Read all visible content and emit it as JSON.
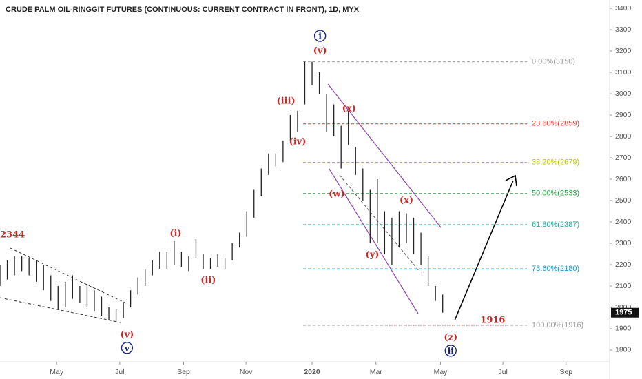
{
  "chart_data": {
    "type": "range_bar",
    "title": "CRUDE PALM OIL-RINGGIT FUTURES (CONTINUOUS: CURRENT CONTRACT IN FRONT), 1D, MYX",
    "color": "#222222",
    "x": [
      0,
      1,
      2,
      3,
      4,
      5,
      6,
      7,
      8,
      9,
      10,
      11,
      12,
      13,
      14,
      15,
      16,
      17,
      18,
      19,
      20,
      21,
      22,
      23,
      24,
      25,
      26,
      27,
      28,
      29,
      30,
      31,
      32,
      33,
      34,
      35,
      36,
      37,
      38,
      39,
      40,
      41,
      42,
      43,
      44,
      45,
      46,
      47,
      48,
      49,
      50,
      51,
      52,
      53,
      54,
      55,
      56,
      57,
      58,
      59,
      60,
      61
    ],
    "high": [
      2200,
      2220,
      2240,
      2240,
      2230,
      2220,
      2200,
      2150,
      2100,
      2120,
      2150,
      2100,
      2110,
      2080,
      2050,
      2000,
      1990,
      2020,
      2080,
      2140,
      2180,
      2220,
      2260,
      2260,
      2310,
      2260,
      2240,
      2320,
      2250,
      2230,
      2250,
      2230,
      2300,
      2350,
      2450,
      2550,
      2650,
      2720,
      2720,
      2780,
      2900,
      2920,
      3150,
      3150,
      3100,
      3000,
      2950,
      2850,
      2920,
      2750,
      2650,
      2550,
      2600,
      2450,
      2420,
      2450,
      2440,
      2420,
      2350,
      2240,
      2100,
      2060
    ],
    "low": [
      2100,
      2130,
      2150,
      2170,
      2150,
      2120,
      2080,
      2030,
      1990,
      2000,
      2040,
      2020,
      2000,
      1980,
      1960,
      1940,
      1930,
      1950,
      2000,
      2060,
      2100,
      2150,
      2180,
      2180,
      2200,
      2190,
      2170,
      2230,
      2180,
      2180,
      2190,
      2180,
      2220,
      2280,
      2330,
      2420,
      2520,
      2620,
      2660,
      2680,
      2780,
      2820,
      2950,
      3040,
      3000,
      2820,
      2800,
      2650,
      2760,
      2620,
      2500,
      2300,
      2300,
      2250,
      2200,
      2280,
      2300,
      2250,
      2200,
      2100,
      2030,
      1975
    ],
    "xlim": [
      0,
      84
    ],
    "xticks": [
      {
        "value": 7.8,
        "label": "May"
      },
      {
        "value": 16.5,
        "label": "Jul"
      },
      {
        "value": 25.3,
        "label": "Sep"
      },
      {
        "value": 33.9,
        "label": "Nov"
      },
      {
        "value": 43,
        "label": "2020"
      },
      {
        "value": 51.8,
        "label": "Mar"
      },
      {
        "value": 60.7,
        "label": "May"
      },
      {
        "value": 69.3,
        "label": "Jul"
      },
      {
        "value": 78,
        "label": "Sep"
      }
    ],
    "ylim": [
      1745,
      3439
    ],
    "yticks": [
      1800,
      1900,
      2000,
      2100,
      2200,
      2300,
      2400,
      2500,
      2600,
      2700,
      2800,
      2900,
      3000,
      3100,
      3200,
      3300,
      3400
    ],
    "last_price": 1975,
    "fib_levels": [
      {
        "label": "0.00%(3150)",
        "value": 3150,
        "color": "#9e9e9e"
      },
      {
        "label": "23.60%(2859)",
        "value": 2859,
        "color": "#e53935"
      },
      {
        "label": "38.20%(2679)",
        "value": 2679,
        "color": "#b8c400"
      },
      {
        "label": "50.00%(2533)",
        "value": 2533,
        "color": "#2e9e44"
      },
      {
        "label": "61.80%(2387)",
        "value": 2387,
        "color": "#26a69a"
      },
      {
        "label": "78.60%(2180)",
        "value": 2180,
        "color": "#2196c8"
      },
      {
        "label": "100.00%(1916)",
        "value": 1916,
        "color": "#9e9e9e"
      }
    ],
    "annotations": [
      {
        "text": "2344",
        "x": 0,
        "y": 2342,
        "style": "wave"
      },
      {
        "text": "(v)",
        "x": 17.5,
        "y": 1874,
        "style": "wave"
      },
      {
        "text": "v",
        "x": 17.5,
        "y": 1810,
        "style": "circle"
      },
      {
        "text": "(i)",
        "x": 24.2,
        "y": 2348,
        "style": "wave"
      },
      {
        "text": "(ii)",
        "x": 28.7,
        "y": 2129,
        "style": "wave"
      },
      {
        "text": "(iii)",
        "x": 39.4,
        "y": 2968,
        "style": "wave"
      },
      {
        "text": "(iv)",
        "x": 41,
        "y": 2777,
        "style": "wave"
      },
      {
        "text": "(v)",
        "x": 44.1,
        "y": 3203,
        "style": "wave"
      },
      {
        "text": "i",
        "x": 44.1,
        "y": 3271,
        "style": "circle"
      },
      {
        "text": "(x)",
        "x": 48.1,
        "y": 2932,
        "style": "wave"
      },
      {
        "text": "(w)",
        "x": 46.4,
        "y": 2532,
        "style": "wave"
      },
      {
        "text": "(y)",
        "x": 51.3,
        "y": 2248,
        "style": "wave"
      },
      {
        "text": "(x)",
        "x": 56,
        "y": 2503,
        "style": "wave"
      },
      {
        "text": "(z)",
        "x": 62.1,
        "y": 1861,
        "style": "wave"
      },
      {
        "text": "ii",
        "x": 62.1,
        "y": 1797,
        "style": "circle"
      },
      {
        "text": "1916",
        "x": 67.9,
        "y": 1942,
        "style": "wave"
      }
    ]
  }
}
